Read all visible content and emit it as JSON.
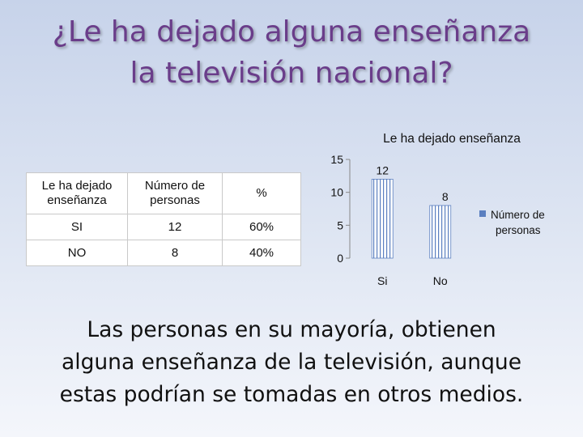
{
  "slide": {
    "title_lines": [
      "¿Le ha dejado alguna enseñanza",
      "la televisión nacional?"
    ],
    "conclusion_lines": [
      "Las personas en su mayoría, obtienen",
      "alguna enseñanza de la televisión, aunque",
      "estas podrían se tomadas en otros medios."
    ]
  },
  "table": {
    "headers": [
      "Le ha dejado enseñanza",
      "Número de personas",
      "%"
    ],
    "rows": [
      [
        "SI",
        "12",
        "60%"
      ],
      [
        "NO",
        "8",
        "40%"
      ]
    ]
  },
  "colors": {
    "title": "#6a3d8a",
    "bar_fill": "#ffffff",
    "bar_stripe": "#5b7fc0"
  },
  "chart_data": {
    "type": "bar",
    "title": "Le ha dejado enseñanza",
    "categories": [
      "Si",
      "No"
    ],
    "series": [
      {
        "name": "Número de personas",
        "values": [
          12,
          8
        ]
      }
    ],
    "data_labels": [
      "12",
      "8"
    ],
    "ylim": [
      0,
      15
    ],
    "yticks": [
      0,
      5,
      10,
      15
    ],
    "grid": false,
    "legend": "right"
  }
}
